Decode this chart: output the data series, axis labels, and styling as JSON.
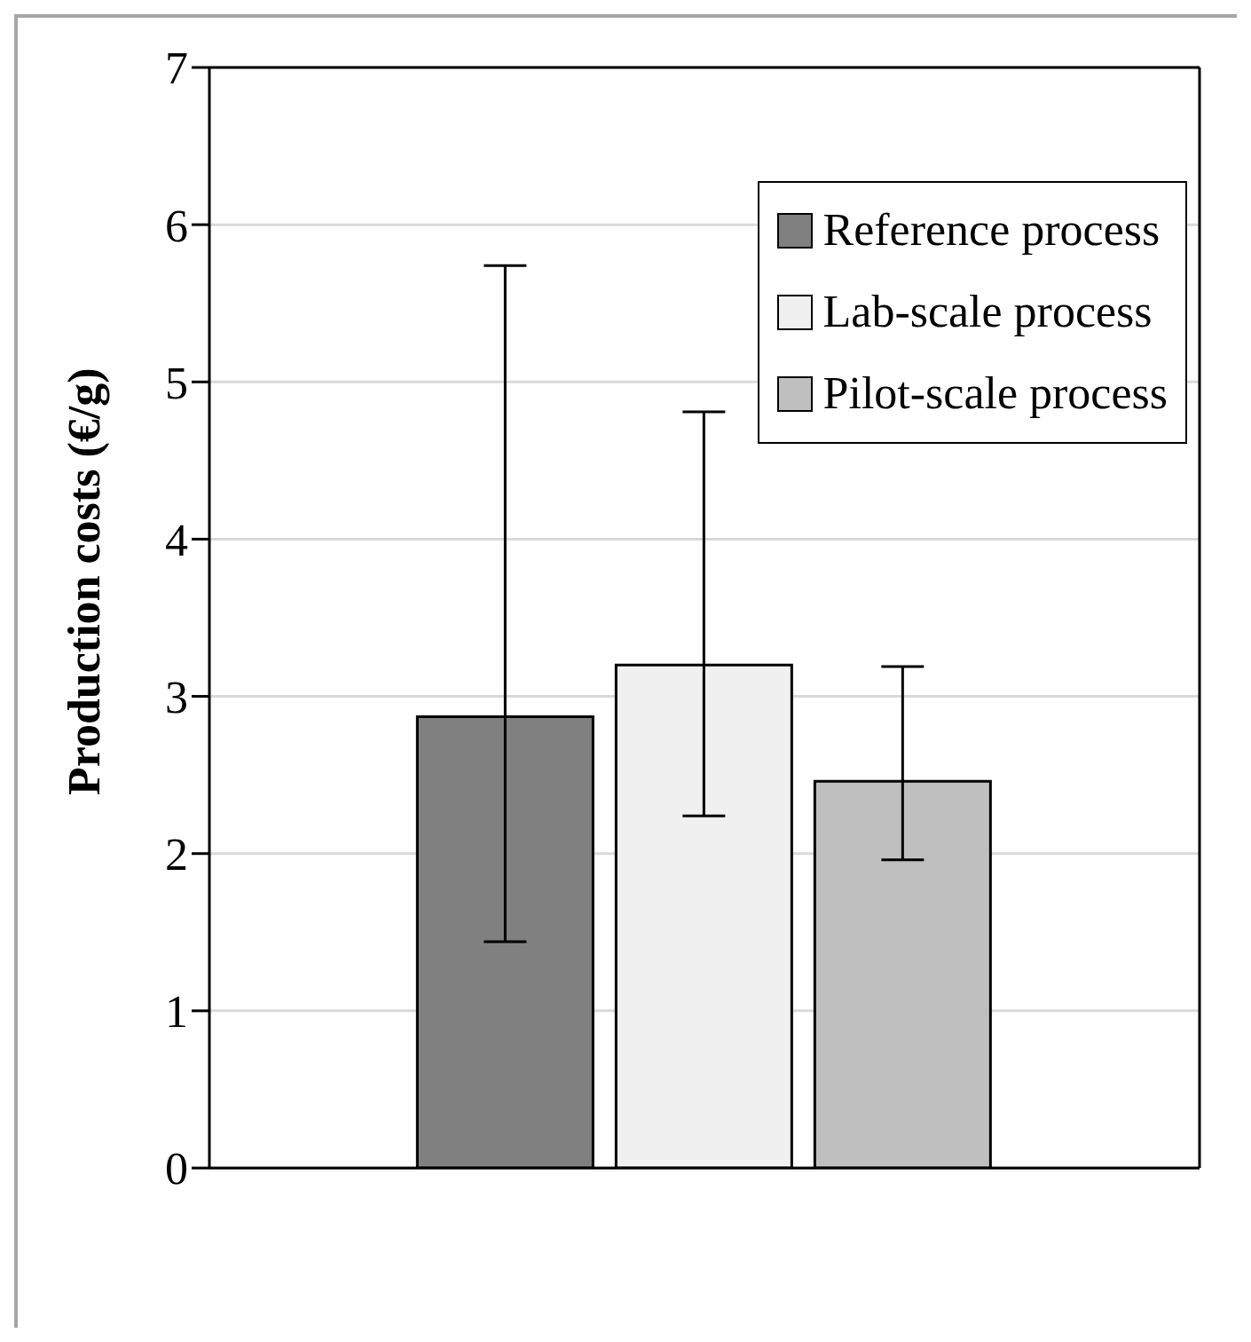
{
  "chart_data": {
    "type": "bar",
    "ylabel": "Production costs (€/g)",
    "categories": [
      null
    ],
    "series": [
      {
        "name": "Reference process",
        "color": "#808080",
        "values": [
          2.87
        ],
        "errors": [
          [
            1.44,
            5.74
          ]
        ]
      },
      {
        "name": "Lab-scale process",
        "color": "#f0f0f0",
        "values": [
          3.2
        ],
        "errors": [
          [
            2.24,
            4.81
          ]
        ]
      },
      {
        "name": "Pilot-scale process",
        "color": "#bfbfbf",
        "values": [
          2.46
        ],
        "errors": [
          [
            1.96,
            3.19
          ]
        ]
      }
    ],
    "ylim": [
      0,
      7
    ],
    "yticks": [
      0,
      1,
      2,
      3,
      4,
      5,
      6,
      7
    ],
    "grid": "y",
    "legend": "top right",
    "tick_labels": "y"
  }
}
